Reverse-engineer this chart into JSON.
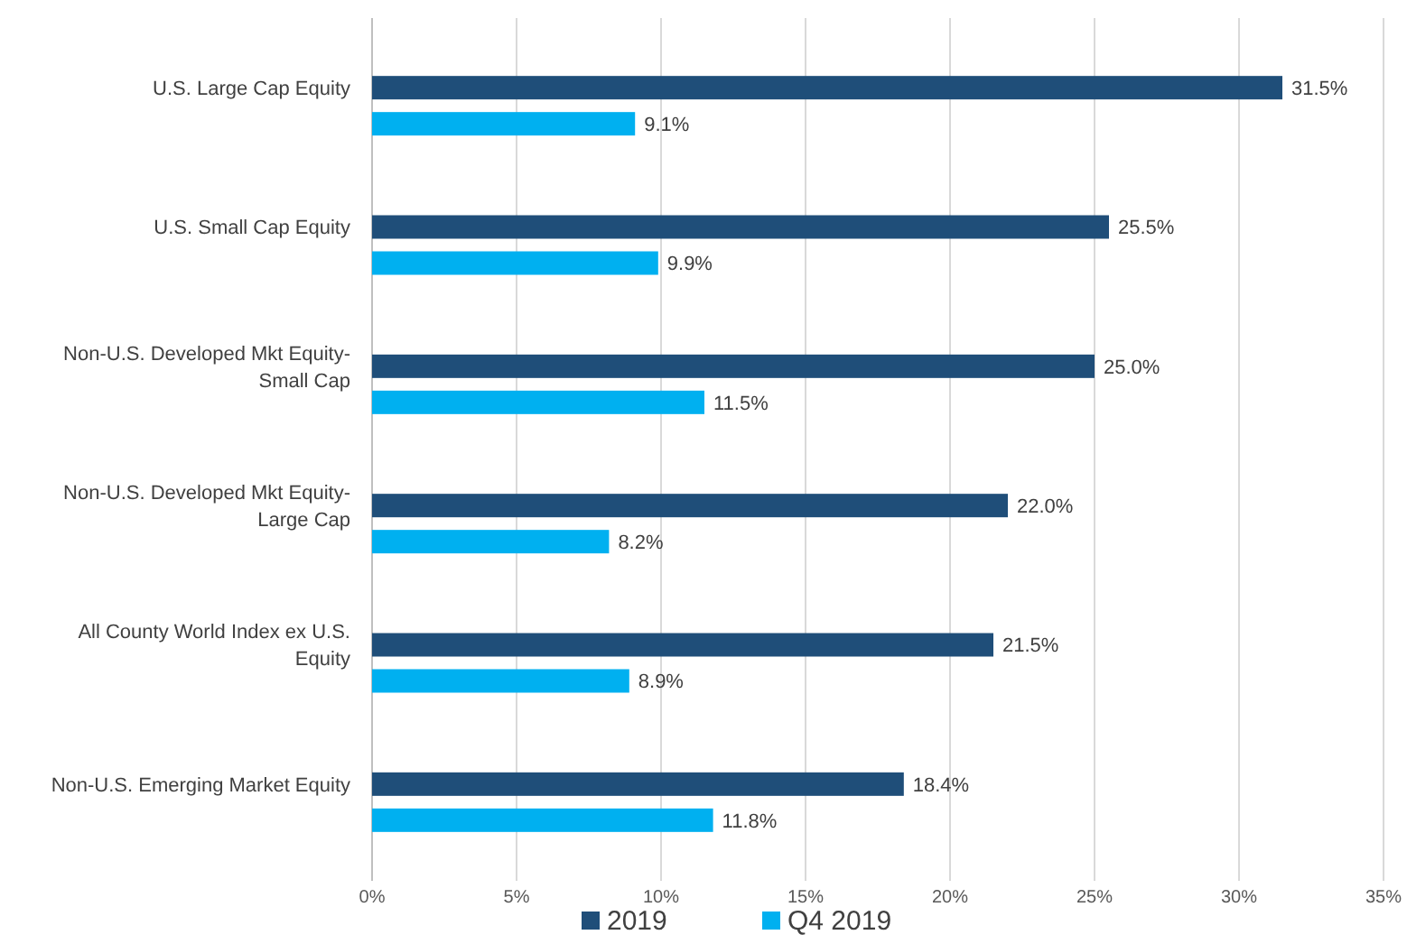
{
  "chart_data": {
    "type": "bar",
    "orientation": "horizontal",
    "categories": [
      "U.S. Large Cap Equity",
      "U.S. Small Cap Equity",
      "Non-U.S. Developed Mkt Equity-Small Cap",
      "Non-U.S. Developed Mkt Equity-Large Cap",
      "All County World Index ex U.S. Equity",
      "Non-U.S. Emerging Market Equity"
    ],
    "series": [
      {
        "name": "2019",
        "color": "#1f4e79",
        "values": [
          31.5,
          25.5,
          25.0,
          22.0,
          21.5,
          18.4
        ],
        "value_labels": [
          "31.5%",
          "25.5%",
          "25.0%",
          "22.0%",
          "21.5%",
          "18.4%"
        ]
      },
      {
        "name": "Q4 2019",
        "color": "#00b0f0",
        "values": [
          9.1,
          9.9,
          11.5,
          8.2,
          8.9,
          11.8
        ],
        "value_labels": [
          "9.1%",
          "9.9%",
          "11.5%",
          "8.2%",
          "8.9%",
          "11.8%"
        ]
      }
    ],
    "xlim": [
      0,
      35
    ],
    "xticks": [
      {
        "value": 0,
        "label": "0%"
      },
      {
        "value": 5,
        "label": "5%"
      },
      {
        "value": 10,
        "label": "10%"
      },
      {
        "value": 15,
        "label": "15%"
      },
      {
        "value": 20,
        "label": "20%"
      },
      {
        "value": 25,
        "label": "25%"
      },
      {
        "value": 30,
        "label": "30%"
      },
      {
        "value": 35,
        "label": "35%"
      }
    ],
    "grid": "x",
    "legend": "bottom"
  }
}
